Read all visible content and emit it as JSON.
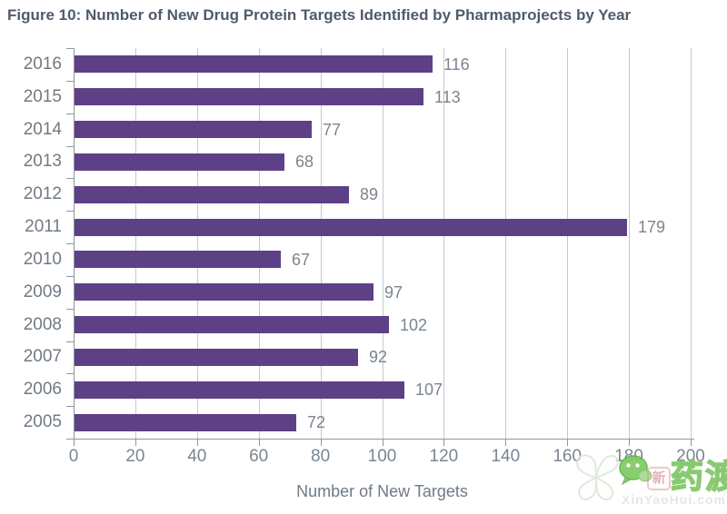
{
  "title": "Figure 10: Number of New Drug Protein Targets Identified by Pharmaprojects by Year",
  "chart_data": {
    "type": "bar",
    "orientation": "horizontal",
    "title": "Figure 10: Number of New Drug Protein Targets Identified by Pharmaprojects by Year",
    "categories": [
      "2016",
      "2015",
      "2014",
      "2013",
      "2012",
      "2011",
      "2010",
      "2009",
      "2008",
      "2007",
      "2006",
      "2005"
    ],
    "values": [
      116,
      113,
      77,
      68,
      89,
      179,
      67,
      97,
      102,
      92,
      107,
      72
    ],
    "xlabel": "Number of New Targets",
    "ylabel": "",
    "xlim": [
      0,
      200
    ],
    "xticks": [
      0,
      20,
      40,
      60,
      80,
      100,
      120,
      140,
      160,
      180,
      200
    ],
    "grid": true,
    "legend": "none",
    "value_labels": true,
    "bar_color": "#5e4087",
    "grid_color": "#c5c9cc",
    "axis_color": "#8f979e",
    "label_color": "#7b8590",
    "title_color": "#4f5b6b"
  },
  "watermark": {
    "brand_small": "新",
    "brand": "药渡",
    "site": "XinYaoHui.com",
    "green": "#7cc561"
  }
}
